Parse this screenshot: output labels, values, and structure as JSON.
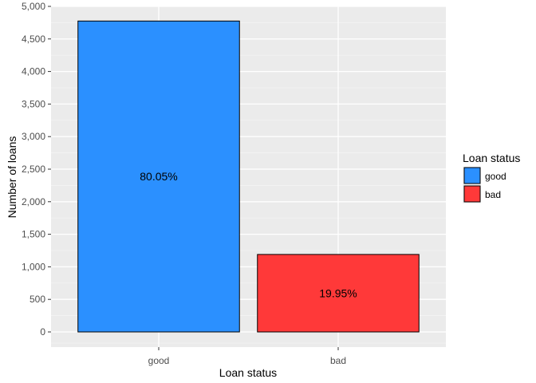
{
  "chart_data": {
    "type": "bar",
    "categories": [
      "good",
      "bad"
    ],
    "values": [
      4775,
      1190
    ],
    "bar_labels": [
      "80.05%",
      "19.95%"
    ],
    "colors": [
      "#2b90ff",
      "#ff3939"
    ],
    "xlabel": "Loan status",
    "ylabel": "Number of loans",
    "ylim": [
      0,
      5000
    ],
    "yticks": [
      0,
      500,
      1000,
      1500,
      2000,
      2500,
      3000,
      3500,
      4000,
      4500,
      5000
    ],
    "ytick_labels": [
      "0",
      "500",
      "1,000",
      "1,500",
      "2,000",
      "2,500",
      "3,000",
      "3,500",
      "4,000",
      "4,500",
      "5,000"
    ],
    "grid": true,
    "legend": {
      "title": "Loan status",
      "position": "right",
      "entries": [
        "good",
        "bad"
      ]
    }
  }
}
